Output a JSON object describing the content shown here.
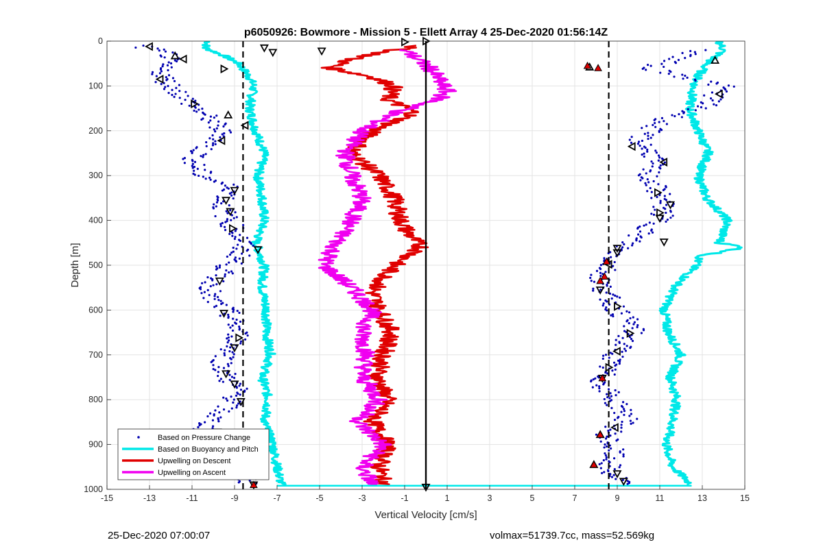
{
  "chart_data": {
    "type": "scatter",
    "title": "p6050926: Bowmore - Mission 5 - Ellett Array 4 25-Dec-2020 01:56:14Z",
    "xlabel": "Vertical Velocity [cm/s]",
    "ylabel": "Depth [m]",
    "xlim": [
      -15,
      15
    ],
    "ylim": [
      0,
      1000
    ],
    "y_reversed": true,
    "grid": true,
    "x_ticks": [
      -15,
      -13,
      -11,
      -9,
      -7,
      -5,
      -3,
      -1,
      1,
      3,
      5,
      7,
      9,
      11,
      13,
      15
    ],
    "y_ticks": [
      0,
      100,
      200,
      300,
      400,
      500,
      600,
      700,
      800,
      900,
      1000
    ],
    "legend_position": "bottom-left",
    "legend": [
      {
        "label": "Based on Pressure Change",
        "color": "#0000b0",
        "style": "dots"
      },
      {
        "label": "Based on Buoyancy and Pitch",
        "color": "#00e8e8",
        "style": "line"
      },
      {
        "label": "Upwelling on Descent",
        "color": "#e00000",
        "style": "line"
      },
      {
        "label": "Upwelling on Ascent",
        "color": "#f000f0",
        "style": "line"
      }
    ],
    "reference_lines": [
      {
        "x": 0,
        "style": "solid",
        "color": "#000000"
      },
      {
        "x": -8.6,
        "style": "dashed",
        "color": "#000000"
      },
      {
        "x": 8.6,
        "style": "dashed",
        "color": "#000000"
      }
    ],
    "series": [
      {
        "name": "Based on Buoyancy and Pitch",
        "side": "descent",
        "color": "#00e8e8",
        "depth": [
          0,
          15,
          30,
          50,
          80,
          100,
          150,
          200,
          250,
          300,
          350,
          400,
          450,
          500,
          550,
          600,
          650,
          700,
          750,
          800,
          850,
          900,
          950,
          990
        ],
        "x": [
          -10.2,
          -10.4,
          -9.6,
          -8.8,
          -8.3,
          -8.1,
          -8.3,
          -8.0,
          -7.6,
          -7.9,
          -7.7,
          -7.6,
          -8.0,
          -7.6,
          -7.7,
          -7.5,
          -7.5,
          -7.3,
          -7.7,
          -7.4,
          -7.6,
          -7.2,
          -7.0,
          -6.8
        ]
      },
      {
        "name": "Based on Buoyancy and Pitch",
        "side": "ascent",
        "color": "#00e8e8",
        "depth": [
          0,
          20,
          50,
          80,
          100,
          150,
          200,
          250,
          300,
          350,
          400,
          450,
          460,
          480,
          500,
          550,
          600,
          650,
          700,
          750,
          800,
          850,
          900,
          950,
          990
        ],
        "x": [
          13.8,
          14.0,
          13.2,
          12.8,
          12.6,
          12.4,
          12.8,
          13.3,
          12.8,
          13.2,
          14.2,
          13.8,
          15.0,
          12.9,
          12.7,
          11.7,
          11.2,
          11.4,
          12.0,
          11.5,
          11.8,
          11.6,
          11.3,
          11.6,
          12.5
        ]
      },
      {
        "name": "Upwelling on Descent",
        "color": "#e00000",
        "depth": [
          10,
          20,
          40,
          60,
          80,
          100,
          130,
          160,
          200,
          250,
          300,
          350,
          400,
          430,
          460,
          480,
          500,
          530,
          560,
          600,
          650,
          700,
          750,
          800,
          850,
          900,
          950,
          990
        ],
        "x": [
          -0.3,
          -1.5,
          -3.5,
          -4.5,
          -2.5,
          -1.5,
          -1.8,
          -0.5,
          -2.5,
          -3.5,
          -2.2,
          -1.5,
          -1.2,
          -0.8,
          -0.2,
          -0.8,
          -1.5,
          -2.0,
          -2.5,
          -2.2,
          -1.6,
          -2.0,
          -2.3,
          -1.8,
          -2.5,
          -1.8,
          -2.2,
          -2.0
        ]
      },
      {
        "name": "Upwelling on Ascent",
        "color": "#f000f0",
        "depth": [
          20,
          60,
          100,
          110,
          130,
          160,
          200,
          250,
          300,
          350,
          400,
          450,
          500,
          550,
          600,
          650,
          700,
          750,
          800,
          850,
          900,
          950,
          990
        ],
        "x": [
          -1.0,
          0.2,
          0.8,
          1.0,
          0.6,
          -1.5,
          -3.0,
          -3.8,
          -3.5,
          -3.0,
          -3.5,
          -4.2,
          -4.8,
          -3.5,
          -2.5,
          -3.0,
          -2.8,
          -3.0,
          -2.2,
          -3.2,
          -2.0,
          -3.0,
          -2.5
        ]
      },
      {
        "name": "Based on Pressure Change",
        "side": "descent",
        "color": "#0000b0",
        "depth": [
          10,
          30,
          60,
          90,
          120,
          150,
          180,
          210,
          240,
          270,
          300,
          330,
          360,
          390,
          420,
          450,
          480,
          510,
          540,
          570,
          600,
          630,
          660,
          690,
          720,
          750,
          780,
          810,
          840,
          870,
          900,
          930,
          960,
          990
        ],
        "x": [
          -13.5,
          -12.0,
          -12.5,
          -12.2,
          -11.5,
          -10.8,
          -10.0,
          -9.5,
          -10.5,
          -11.0,
          -10.5,
          -9.0,
          -9.6,
          -9.4,
          -9.0,
          -8.6,
          -8.8,
          -9.5,
          -10.0,
          -10.3,
          -9.4,
          -9.0,
          -8.8,
          -9.2,
          -9.6,
          -9.4,
          -8.8,
          -9.2,
          -10.0,
          -10.5,
          -9.8,
          -9.2,
          -8.6,
          -8.4
        ]
      },
      {
        "name": "Based on Pressure Change",
        "side": "ascent",
        "color": "#0000b0",
        "depth": [
          20,
          60,
          100,
          140,
          180,
          220,
          260,
          300,
          340,
          370,
          400,
          440,
          470,
          500,
          530,
          560,
          600,
          640,
          680,
          720,
          760,
          800,
          840,
          880,
          920,
          960,
          990
        ],
        "x": [
          13.0,
          10.5,
          14.0,
          13.3,
          11.0,
          10.0,
          10.8,
          10.4,
          11.0,
          11.2,
          11.0,
          9.8,
          9.0,
          8.6,
          8.2,
          8.4,
          9.0,
          9.8,
          9.2,
          8.6,
          8.2,
          8.8,
          9.5,
          8.5,
          8.8,
          8.5,
          9.5
        ]
      },
      {
        "name": "Dive markers",
        "color": "#000000",
        "style": "triangles",
        "points": [
          {
            "x": -13.0,
            "y": 12,
            "dir": "left"
          },
          {
            "x": -11.8,
            "y": 33,
            "dir": "up"
          },
          {
            "x": -11.4,
            "y": 40,
            "dir": "left"
          },
          {
            "x": -12.5,
            "y": 85,
            "dir": "left"
          },
          {
            "x": -9.5,
            "y": 62,
            "dir": "right"
          },
          {
            "x": -10.9,
            "y": 140,
            "dir": "right"
          },
          {
            "x": -9.3,
            "y": 165,
            "dir": "up"
          },
          {
            "x": -8.5,
            "y": 188,
            "dir": "left"
          },
          {
            "x": -9.6,
            "y": 222,
            "dir": "left"
          },
          {
            "x": -9.0,
            "y": 333,
            "dir": "down"
          },
          {
            "x": -9.4,
            "y": 355,
            "dir": "down"
          },
          {
            "x": -9.2,
            "y": 380,
            "dir": "down"
          },
          {
            "x": -9.1,
            "y": 418,
            "dir": "right"
          },
          {
            "x": -7.9,
            "y": 465,
            "dir": "down"
          },
          {
            "x": -9.7,
            "y": 535,
            "dir": "down"
          },
          {
            "x": -9.5,
            "y": 607,
            "dir": "down"
          },
          {
            "x": -8.8,
            "y": 662,
            "dir": "right"
          },
          {
            "x": -9.0,
            "y": 684,
            "dir": "down"
          },
          {
            "x": -9.4,
            "y": 742,
            "dir": "down"
          },
          {
            "x": -9.0,
            "y": 765,
            "dir": "down"
          },
          {
            "x": -8.7,
            "y": 804,
            "dir": "down"
          },
          {
            "x": -9.8,
            "y": 872,
            "dir": "down"
          },
          {
            "x": -8.0,
            "y": 970,
            "dir": "down"
          },
          {
            "x": -8.1,
            "y": 990,
            "dir": "down"
          },
          {
            "x": -7.6,
            "y": 15,
            "dir": "down"
          },
          {
            "x": -7.2,
            "y": 25,
            "dir": "down"
          },
          {
            "x": -4.9,
            "y": 22,
            "dir": "down"
          },
          {
            "x": -1.0,
            "y": 2,
            "dir": "right"
          },
          {
            "x": 0.0,
            "y": 0,
            "dir": "right"
          },
          {
            "x": 0.0,
            "y": 995,
            "dir": "down"
          },
          {
            "x": 13.6,
            "y": 43,
            "dir": "up"
          },
          {
            "x": 13.8,
            "y": 118,
            "dir": "left"
          },
          {
            "x": 9.7,
            "y": 235,
            "dir": "left"
          },
          {
            "x": 11.2,
            "y": 270,
            "dir": "left"
          },
          {
            "x": 10.9,
            "y": 338,
            "dir": "right"
          },
          {
            "x": 11.5,
            "y": 365,
            "dir": "down"
          },
          {
            "x": 11.0,
            "y": 383,
            "dir": "right"
          },
          {
            "x": 11.0,
            "y": 395,
            "dir": "down"
          },
          {
            "x": 11.2,
            "y": 448,
            "dir": "down"
          },
          {
            "x": 9.0,
            "y": 462,
            "dir": "down"
          },
          {
            "x": 9.0,
            "y": 472,
            "dir": "down"
          },
          {
            "x": 8.6,
            "y": 498,
            "dir": "left"
          },
          {
            "x": 8.2,
            "y": 555,
            "dir": "down"
          },
          {
            "x": 9.0,
            "y": 592,
            "dir": "right"
          },
          {
            "x": 9.6,
            "y": 652,
            "dir": "right"
          },
          {
            "x": 9.0,
            "y": 692,
            "dir": "left"
          },
          {
            "x": 8.6,
            "y": 728,
            "dir": "right"
          },
          {
            "x": 8.3,
            "y": 752,
            "dir": "down"
          },
          {
            "x": 8.9,
            "y": 862,
            "dir": "left"
          },
          {
            "x": 8.2,
            "y": 878,
            "dir": "up"
          },
          {
            "x": 7.9,
            "y": 945,
            "dir": "up"
          },
          {
            "x": 9.0,
            "y": 965,
            "dir": "down"
          },
          {
            "x": 9.3,
            "y": 982,
            "dir": "down"
          },
          {
            "x": 7.7,
            "y": 58,
            "dir": "up"
          }
        ]
      },
      {
        "name": "Red markers",
        "color": "#e00000",
        "style": "triangles-filled",
        "points": [
          {
            "x": 7.6,
            "y": 55,
            "dir": "up"
          },
          {
            "x": 8.1,
            "y": 60,
            "dir": "up"
          },
          {
            "x": 8.5,
            "y": 492,
            "dir": "up"
          },
          {
            "x": 8.4,
            "y": 525,
            "dir": "up"
          },
          {
            "x": 8.2,
            "y": 535,
            "dir": "up"
          },
          {
            "x": 8.3,
            "y": 752,
            "dir": "up"
          },
          {
            "x": 8.2,
            "y": 878,
            "dir": "up"
          },
          {
            "x": 7.9,
            "y": 945,
            "dir": "up"
          },
          {
            "x": -8.1,
            "y": 990,
            "dir": "up"
          }
        ]
      }
    ]
  },
  "footer": {
    "left": "25-Dec-2020 07:00:07",
    "right": "volmax=51739.7cc, mass=52.569kg"
  }
}
